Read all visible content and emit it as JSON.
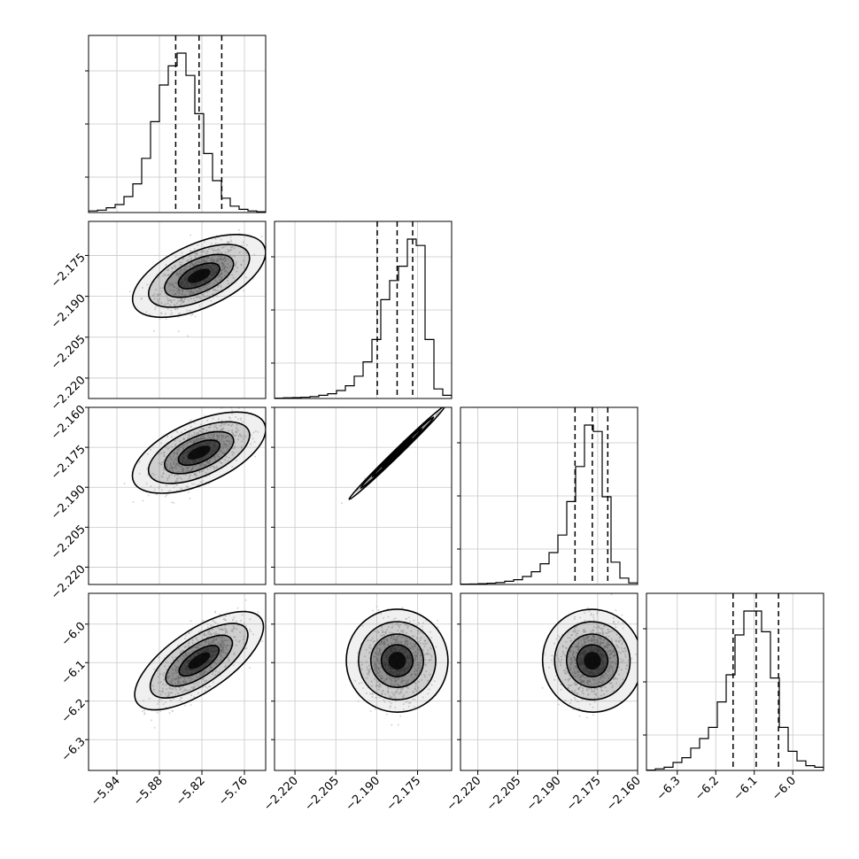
{
  "chart_data": {
    "type": "corner",
    "grid": true,
    "parameters": [
      {
        "ticks": [
          -5.94,
          -5.88,
          -5.82,
          -5.76
        ],
        "tick_labels": [
          "−5.94",
          "−5.88",
          "−5.82",
          "−5.76"
        ],
        "range": [
          -5.98,
          -5.73
        ],
        "quantiles": [
          -5.857,
          -5.824,
          -5.792
        ],
        "hist": [
          0.01,
          0.015,
          0.03,
          0.05,
          0.1,
          0.18,
          0.34,
          0.57,
          0.8,
          0.92,
          1.0,
          0.86,
          0.62,
          0.37,
          0.2,
          0.09,
          0.04,
          0.02,
          0.01,
          0.005
        ],
        "mean": -5.824,
        "sd": 0.028
      },
      {
        "ticks": [
          -2.22,
          -2.205,
          -2.19,
          -2.175
        ],
        "tick_labels": [
          "−2.220",
          "−2.205",
          "−2.190",
          "−2.175"
        ],
        "range": [
          -2.2275,
          -2.1625
        ],
        "quantiles": [
          -2.1898,
          -2.1825,
          -2.1768
        ],
        "hist": [
          0.002,
          0.004,
          0.006,
          0.008,
          0.012,
          0.02,
          0.03,
          0.05,
          0.08,
          0.14,
          0.23,
          0.37,
          0.62,
          0.74,
          0.83,
          1.0,
          0.96,
          0.37,
          0.06,
          0.02
        ],
        "mean": -2.1825,
        "sd": 0.006
      },
      {
        "ticks": [
          -2.22,
          -2.205,
          -2.19,
          -2.175,
          -2.16
        ],
        "tick_labels": [
          "−2.220",
          "−2.205",
          "−2.190",
          "−2.175",
          "−2.160"
        ],
        "range": [
          -2.2265,
          -2.16
        ],
        "quantiles": [
          -2.1835,
          -2.177,
          -2.1712
        ],
        "hist": [
          0.002,
          0.003,
          0.005,
          0.008,
          0.012,
          0.02,
          0.03,
          0.05,
          0.08,
          0.13,
          0.2,
          0.31,
          0.52,
          0.74,
          1.0,
          0.96,
          0.55,
          0.14,
          0.04,
          0.01
        ],
        "mean": -2.177,
        "sd": 0.006
      },
      {
        "ticks": [
          -6.3,
          -6.2,
          -6.1,
          -6.0
        ],
        "tick_labels": [
          "−6.3",
          "−6.2",
          "−6.1",
          "−6.0"
        ],
        "range": [
          -6.38,
          -5.92
        ],
        "quantiles": [
          -6.155,
          -6.095,
          -6.037
        ],
        "hist": [
          0.002,
          0.01,
          0.02,
          0.05,
          0.08,
          0.14,
          0.2,
          0.27,
          0.43,
          0.6,
          0.85,
          1.0,
          1.0,
          0.87,
          0.58,
          0.27,
          0.12,
          0.06,
          0.03,
          0.02
        ],
        "mean": -6.095,
        "sd": 0.05
      }
    ],
    "correlations": [
      [
        1.0,
        0.55,
        0.55,
        0.7
      ],
      [
        0.55,
        1.0,
        0.995,
        0.15
      ],
      [
        0.55,
        0.995,
        1.0,
        0.15
      ],
      [
        0.7,
        0.15,
        0.15,
        1.0
      ]
    ]
  }
}
